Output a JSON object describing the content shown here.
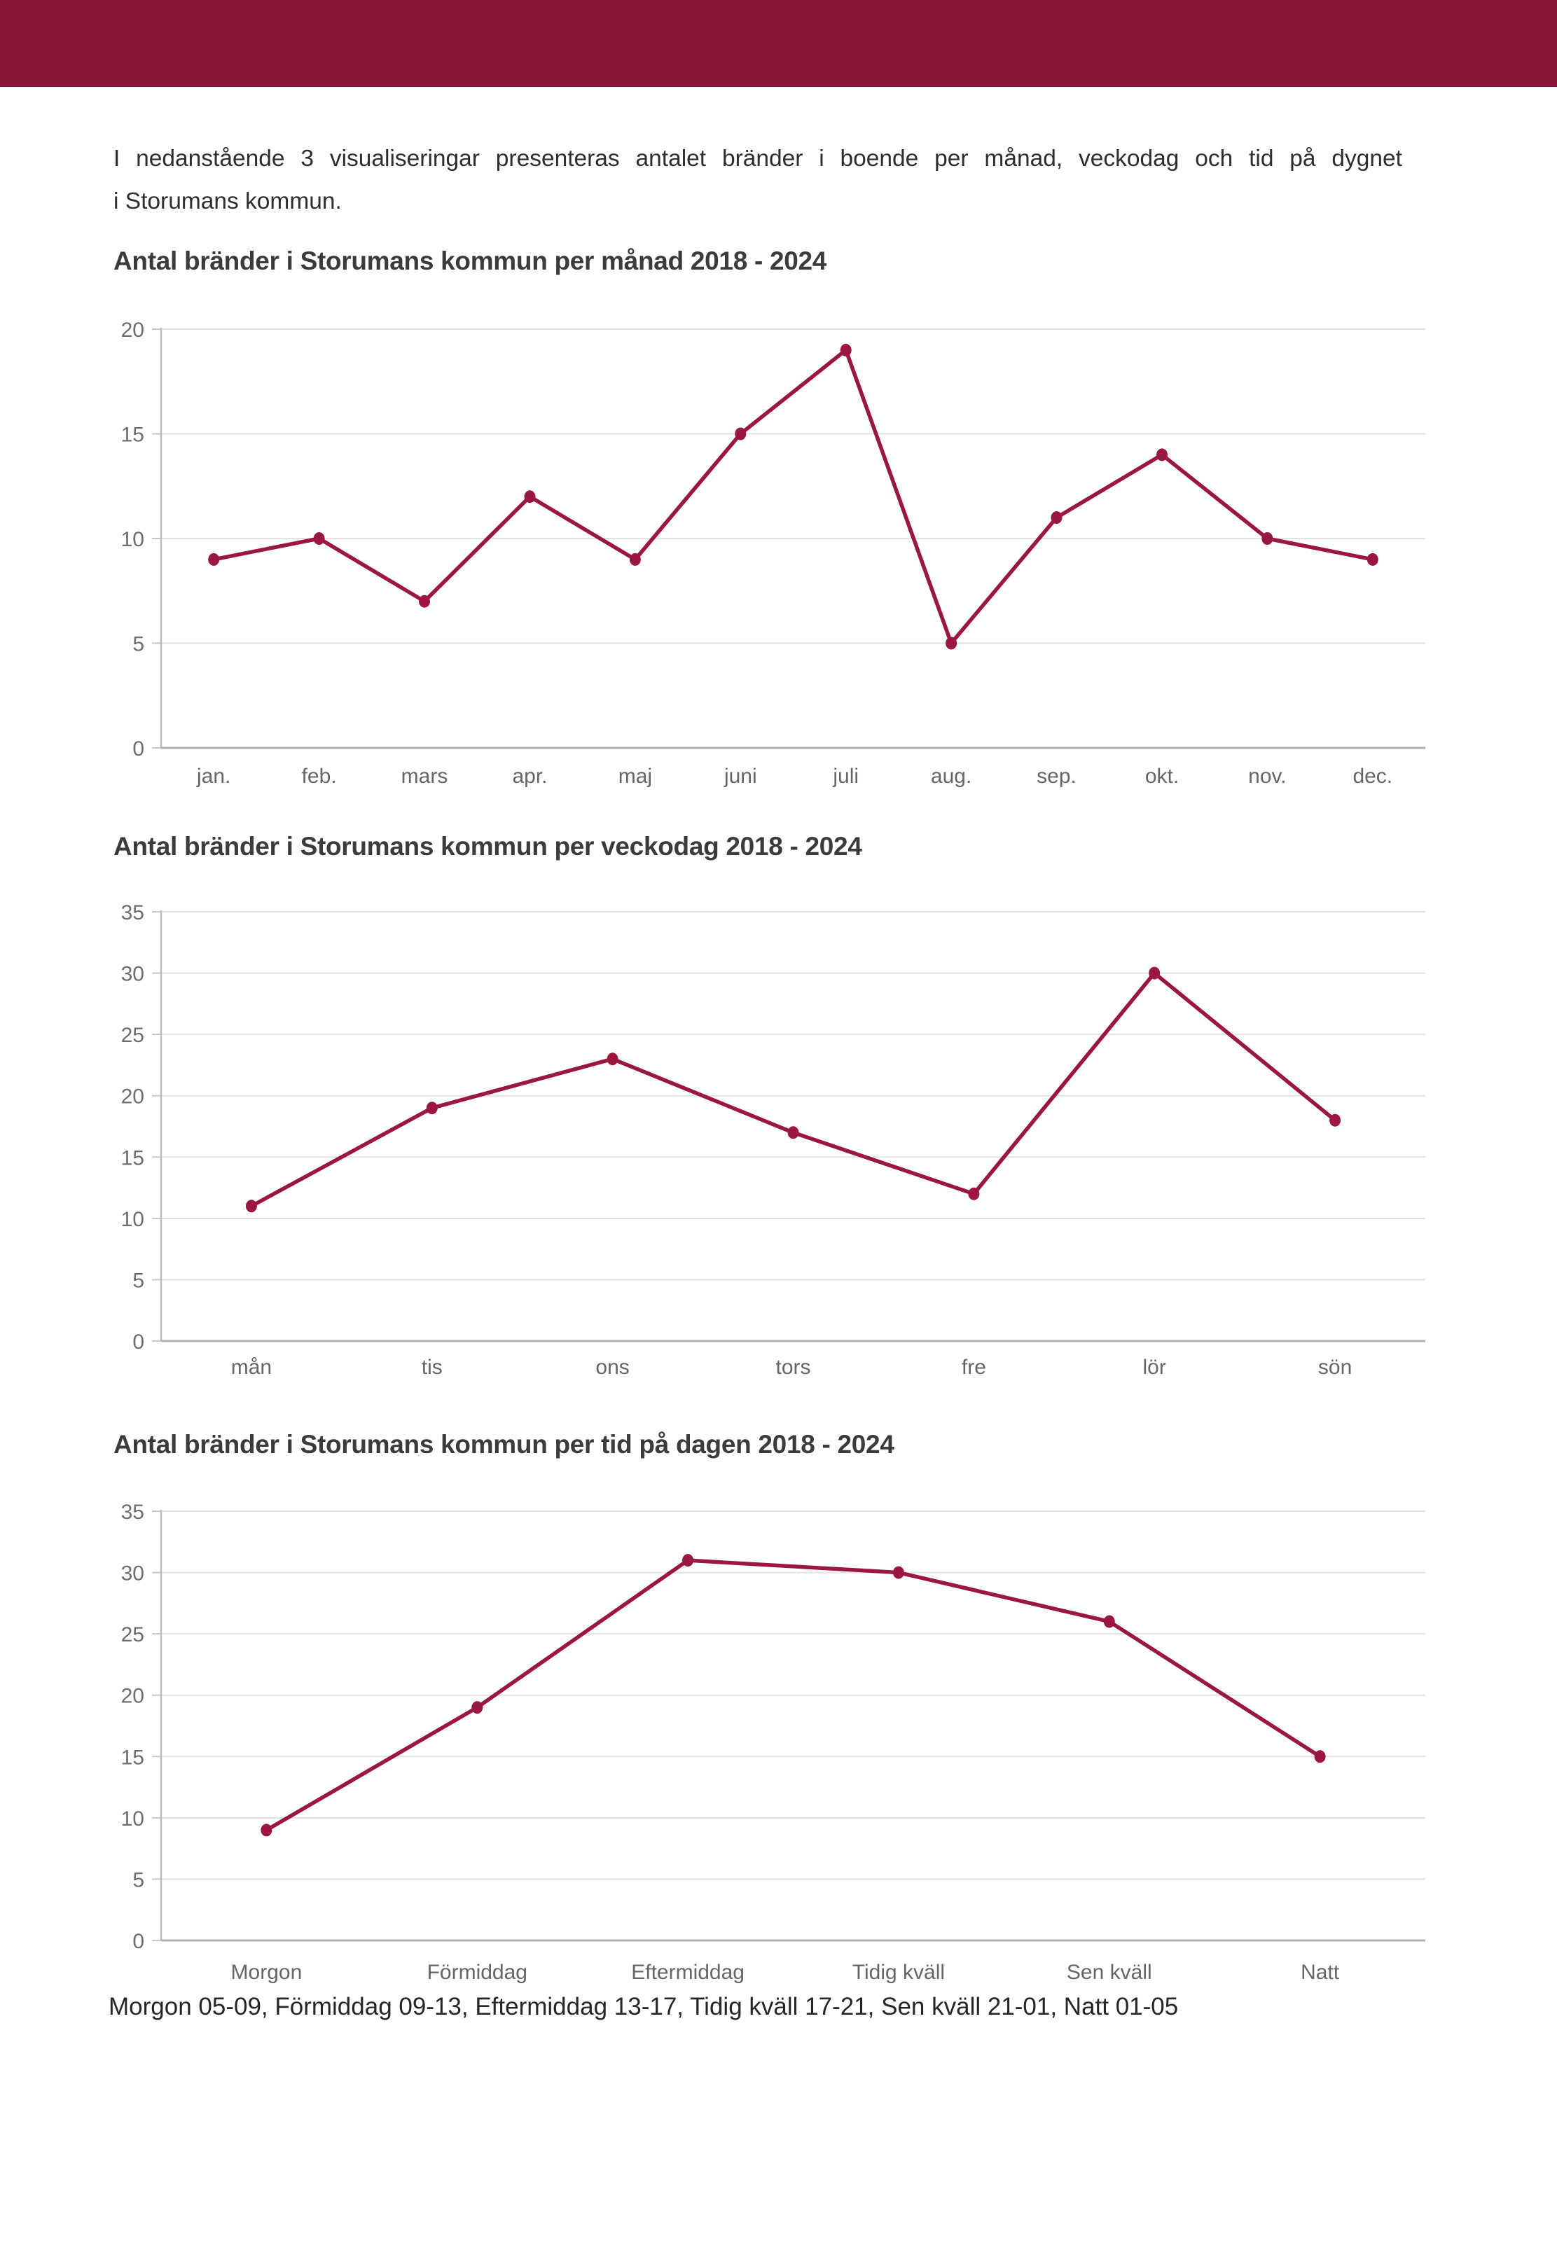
{
  "page": {
    "header": {
      "color": "#8B1538"
    },
    "intro": {
      "line1": "I nedanstående 3 visualiseringar presenteras antalet bränder i boende per månad, veckodag och tid på dygnet",
      "line2": "i Storumans kommun."
    },
    "footer": "Morgon 05-09, Förmiddag 09-13, Eftermiddag 13-17, Tidig kväll 17-21, Sen kväll 21-01, Natt 01-05",
    "accent_color": "#9B1740"
  },
  "chart_data": [
    {
      "type": "line",
      "title": "Antal bränder i Storumans kommun per månad 2018 - 2024",
      "categories": [
        "jan.",
        "feb.",
        "mars",
        "apr.",
        "maj",
        "juni",
        "juli",
        "aug.",
        "sep.",
        "okt.",
        "nov.",
        "dec."
      ],
      "values": [
        9,
        10,
        7,
        12,
        9,
        15,
        19,
        5,
        11,
        14,
        10,
        9
      ],
      "xlabel": "",
      "ylabel": "",
      "ylim": [
        0,
        20
      ],
      "yticks": [
        0,
        5,
        10,
        15,
        20
      ],
      "grid": true,
      "legend": "none",
      "line_color": "#9B1740",
      "marker": "filled-circle"
    },
    {
      "type": "line",
      "title": "Antal bränder i Storumans kommun per veckodag 2018 - 2024",
      "categories": [
        "mån",
        "tis",
        "ons",
        "tors",
        "fre",
        "lör",
        "sön"
      ],
      "values": [
        11,
        19,
        23,
        17,
        12,
        30,
        18
      ],
      "xlabel": "",
      "ylabel": "",
      "ylim": [
        0,
        35
      ],
      "yticks": [
        0,
        5,
        10,
        15,
        20,
        25,
        30,
        35
      ],
      "grid": true,
      "legend": "none",
      "line_color": "#9B1740",
      "marker": "filled-circle"
    },
    {
      "type": "line",
      "title": "Antal bränder i Storumans kommun per tid på dagen 2018 - 2024",
      "categories": [
        "Morgon",
        "Förmiddag",
        "Eftermiddag",
        "Tidig kväll",
        "Sen kväll",
        "Natt"
      ],
      "values": [
        9,
        19,
        31,
        30,
        26,
        15
      ],
      "xlabel": "",
      "ylabel": "",
      "ylim": [
        0,
        35
      ],
      "yticks": [
        0,
        5,
        10,
        15,
        20,
        25,
        30,
        35
      ],
      "grid": true,
      "legend": "none",
      "line_color": "#9B1740",
      "marker": "filled-circle"
    }
  ]
}
